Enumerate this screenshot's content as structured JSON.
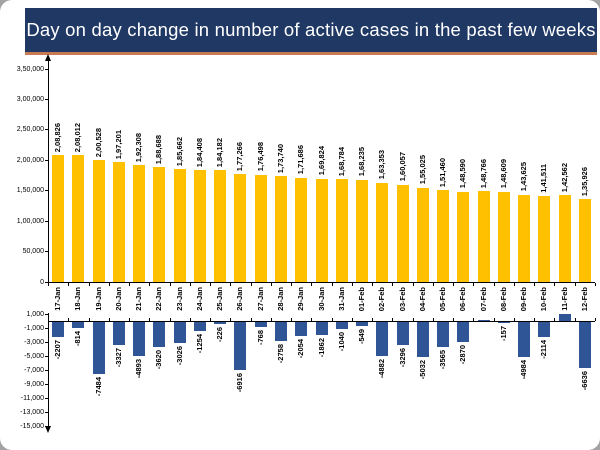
{
  "title": "Day on day change in number of active cases in the past few weeks",
  "colors": {
    "title_bg": "#1F3864",
    "title_rule": "#C87B52",
    "bar_gold": "#FFC000",
    "bar_blue": "#2F5597",
    "axis": "#000000"
  },
  "chart_data": [
    {
      "name": "active_cases",
      "type": "bar",
      "title": "",
      "categories": [
        "17-Jan",
        "18-Jan",
        "19-Jan",
        "20-Jan",
        "21-Jan",
        "22-Jan",
        "23-Jan",
        "24-Jan",
        "25-Jan",
        "26-Jan",
        "27-Jan",
        "28-Jan",
        "29-Jan",
        "30-Jan",
        "31-Jan",
        "01-Feb",
        "02-Feb",
        "03-Feb",
        "04-Feb",
        "05-Feb",
        "06-Feb",
        "07-Feb",
        "08-Feb",
        "09-Feb",
        "10-Feb",
        "11-Feb",
        "12-Feb"
      ],
      "values": [
        208826,
        208012,
        200528,
        197201,
        192308,
        188688,
        185662,
        184408,
        184182,
        177266,
        176498,
        173740,
        171686,
        169824,
        168784,
        168235,
        163353,
        160057,
        155025,
        151460,
        148590,
        148766,
        148609,
        143625,
        141511,
        142562,
        135926
      ],
      "value_labels": [
        "2,08,826",
        "2,08,012",
        "2,00,528",
        "1,97,201",
        "1,92,308",
        "1,88,688",
        "1,85,662",
        "1,84,408",
        "1,84,182",
        "1,77,266",
        "1,76,498",
        "1,73,740",
        "1,71,686",
        "1,69,824",
        "1,68,784",
        "1,68,235",
        "1,63,353",
        "1,60,057",
        "1,55,025",
        "1,51,460",
        "1,48,590",
        "1,48,766",
        "1,48,609",
        "1,43,625",
        "1,41,511",
        "1,42,562",
        "1,35,926"
      ],
      "ylim": [
        0,
        350000
      ],
      "ytick_values": [
        350000,
        300000,
        250000,
        200000,
        150000,
        100000,
        50000,
        0
      ],
      "ytick_labels": [
        "3,50,000",
        "3,00,000",
        "2,50,000",
        "2,00,000",
        "1,50,000",
        "1,00,000",
        "50,000",
        "0"
      ],
      "grid": false,
      "legend": "none"
    },
    {
      "name": "day_on_day_change",
      "type": "bar",
      "categories": [
        "17-Jan",
        "18-Jan",
        "19-Jan",
        "20-Jan",
        "21-Jan",
        "22-Jan",
        "23-Jan",
        "24-Jan",
        "25-Jan",
        "26-Jan",
        "27-Jan",
        "28-Jan",
        "29-Jan",
        "30-Jan",
        "31-Jan",
        "01-Feb",
        "02-Feb",
        "03-Feb",
        "04-Feb",
        "05-Feb",
        "06-Feb",
        "07-Feb",
        "08-Feb",
        "09-Feb",
        "10-Feb",
        "11-Feb",
        "12-Feb"
      ],
      "values": [
        -2207,
        -814,
        -7484,
        -3327,
        -4893,
        -3620,
        -3026,
        -1254,
        -226,
        -6916,
        -768,
        -2758,
        -2054,
        -1862,
        -1040,
        -549,
        -4882,
        -3296,
        -5032,
        -3565,
        -2870,
        176,
        -157,
        -4984,
        -2114,
        1051,
        -6636
      ],
      "value_labels": [
        "-2207",
        "-814",
        "-7484",
        "-3327",
        "-4893",
        "-3620",
        "-3026",
        "-1254",
        "-226",
        "-6916",
        "-768",
        "-2758",
        "-2054",
        "-1862",
        "-1040",
        "-549",
        "-4882",
        "-3296",
        "-5032",
        "-3565",
        "-2870",
        "",
        "-157",
        "-4984",
        "-2114",
        "",
        "-6636"
      ],
      "ylim": [
        -15000,
        1000
      ],
      "ytick_values": [
        1000,
        -1000,
        -3000,
        -5000,
        -7000,
        -9000,
        -11000,
        -13000,
        -15000
      ],
      "ytick_labels": [
        "1,000",
        "-1,000",
        "-3,000",
        "-5,000",
        "-7,000",
        "-9,000",
        "-11,000",
        "-13,000",
        "-15,000"
      ],
      "grid": false,
      "legend": "none"
    }
  ]
}
